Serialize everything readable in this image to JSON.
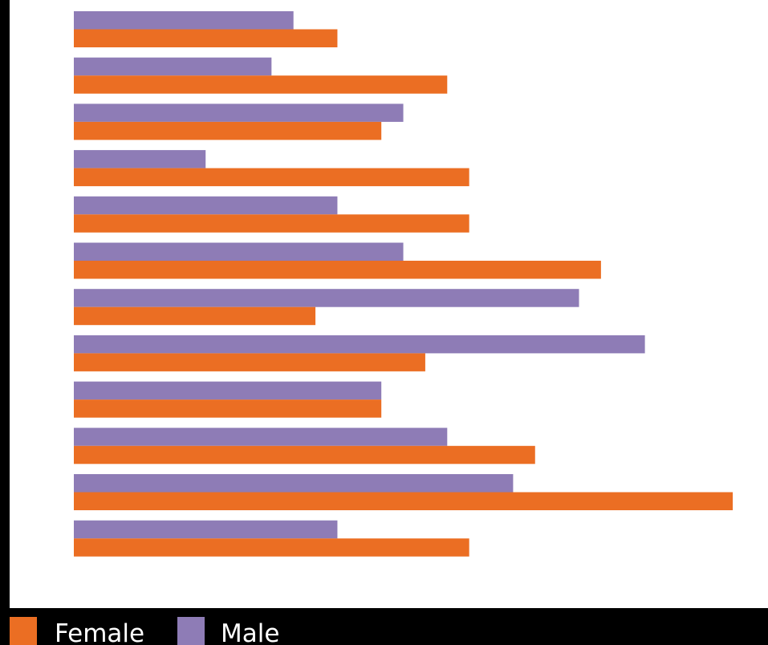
{
  "chart_data": {
    "type": "bar",
    "orientation": "horizontal",
    "categories": [
      "",
      "",
      "",
      "",
      "",
      "",
      "",
      "",
      "",
      "",
      "",
      ""
    ],
    "series": [
      {
        "name": "Female",
        "color": "#EB6E23",
        "values": [
          12,
          17,
          14,
          18,
          18,
          24,
          11,
          16,
          14,
          21,
          30,
          18
        ]
      },
      {
        "name": "Male",
        "color": "#8E7CB6",
        "values": [
          10,
          9,
          15,
          6,
          12,
          15,
          23,
          26,
          14,
          17,
          20,
          12
        ]
      }
    ],
    "xlim": [
      0,
      30
    ],
    "grid": false,
    "legend": "bottom-left",
    "colors": {
      "background": "#FFFFFF",
      "frame": "#000000"
    }
  }
}
